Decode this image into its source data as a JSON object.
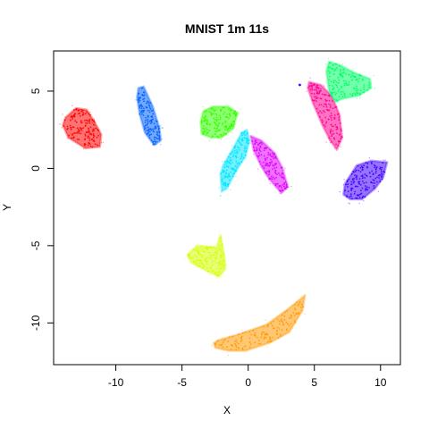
{
  "chart_data": {
    "type": "scatter",
    "title": "MNIST 1m 11s",
    "xlabel": "X",
    "ylabel": "Y",
    "xlim": [
      -14.7,
      11.5
    ],
    "ylim": [
      -12.7,
      7.6
    ],
    "xticks": [
      -10,
      -5,
      0,
      5,
      10
    ],
    "xtick_labels": [
      "-10",
      "-5",
      "0",
      "5",
      "10"
    ],
    "yticks": [
      -10,
      -5,
      0,
      5
    ],
    "ytick_labels": [
      "-10",
      "-5",
      "0",
      "5"
    ],
    "grid": false,
    "legend": "none",
    "clusters": [
      {
        "color": "#ff0000",
        "center": [
          -12.2,
          2.6
        ],
        "polygon": [
          [
            -13.8,
            3.3
          ],
          [
            -13.0,
            3.9
          ],
          [
            -12.2,
            3.8
          ],
          [
            -11.6,
            3.0
          ],
          [
            -11.1,
            2.2
          ],
          [
            -11.2,
            1.4
          ],
          [
            -12.3,
            1.3
          ],
          [
            -13.6,
            2.0
          ],
          [
            -14.0,
            2.8
          ]
        ]
      },
      {
        "color": "#0060ff",
        "center": [
          -7.3,
          3.5
        ],
        "polygon": [
          [
            -8.3,
            5.2
          ],
          [
            -7.9,
            5.3
          ],
          [
            -7.2,
            4.0
          ],
          [
            -6.7,
            2.6
          ],
          [
            -6.6,
            1.8
          ],
          [
            -7.1,
            1.5
          ],
          [
            -7.8,
            2.3
          ],
          [
            -8.2,
            3.5
          ],
          [
            -8.4,
            4.6
          ]
        ]
      },
      {
        "color": "#33ff00",
        "center": [
          -2.0,
          3.0
        ],
        "polygon": [
          [
            -3.4,
            3.7
          ],
          [
            -2.7,
            4.0
          ],
          [
            -1.5,
            4.0
          ],
          [
            -0.8,
            3.6
          ],
          [
            -1.1,
            2.6
          ],
          [
            -2.0,
            2.0
          ],
          [
            -2.8,
            2.0
          ],
          [
            -3.5,
            2.2
          ],
          [
            -3.6,
            3.0
          ]
        ]
      },
      {
        "color": "#00e5ff",
        "center": [
          -0.8,
          0.5
        ],
        "polygon": [
          [
            -0.1,
            2.5
          ],
          [
            0.1,
            1.8
          ],
          [
            -0.2,
            0.8
          ],
          [
            -1.0,
            -0.3
          ],
          [
            -1.6,
            -1.3
          ],
          [
            -2.0,
            -1.5
          ],
          [
            -2.1,
            -0.4
          ],
          [
            -1.9,
            0.2
          ],
          [
            -1.2,
            1.2
          ],
          [
            -0.5,
            2.3
          ]
        ]
      },
      {
        "color": "#e000ff",
        "center": [
          1.8,
          0.1
        ],
        "polygon": [
          [
            0.2,
            2.1
          ],
          [
            1.0,
            1.8
          ],
          [
            2.0,
            1.0
          ],
          [
            2.6,
            0.0
          ],
          [
            3.0,
            -1.2
          ],
          [
            2.5,
            -1.6
          ],
          [
            1.6,
            -0.7
          ],
          [
            1.0,
            0.1
          ],
          [
            0.4,
            1.2
          ]
        ]
      },
      {
        "color": "#ff0090",
        "center": [
          5.9,
          3.4
        ],
        "polygon": [
          [
            4.6,
            5.6
          ],
          [
            5.5,
            5.4
          ],
          [
            6.3,
            4.7
          ],
          [
            6.9,
            3.5
          ],
          [
            7.1,
            2.0
          ],
          [
            6.7,
            1.2
          ],
          [
            6.2,
            1.8
          ],
          [
            5.6,
            2.8
          ],
          [
            4.9,
            4.2
          ],
          [
            4.5,
            5.2
          ]
        ]
      },
      {
        "color": "#00ff66",
        "center": [
          7.5,
          5.6
        ],
        "polygon": [
          [
            6.1,
            6.9
          ],
          [
            6.9,
            6.7
          ],
          [
            8.0,
            6.2
          ],
          [
            9.2,
            5.8
          ],
          [
            9.3,
            5.2
          ],
          [
            8.3,
            4.7
          ],
          [
            7.1,
            4.5
          ],
          [
            6.6,
            4.3
          ],
          [
            6.1,
            5.0
          ],
          [
            5.9,
            6.3
          ]
        ]
      },
      {
        "color": "#4000ff",
        "center": [
          9.0,
          -0.8
        ],
        "polygon": [
          [
            7.3,
            -1.0
          ],
          [
            8.2,
            0.2
          ],
          [
            9.3,
            0.5
          ],
          [
            10.5,
            0.4
          ],
          [
            10.2,
            -0.6
          ],
          [
            9.6,
            -1.3
          ],
          [
            8.6,
            -2.0
          ],
          [
            7.7,
            -2.0
          ],
          [
            7.2,
            -1.7
          ]
        ]
      },
      {
        "color": "#d4ff00",
        "center": [
          -3.0,
          -5.8
        ],
        "polygon": [
          [
            -4.6,
            -5.6
          ],
          [
            -3.9,
            -5.0
          ],
          [
            -2.4,
            -5.1
          ],
          [
            -2.1,
            -4.3
          ],
          [
            -1.8,
            -5.6
          ],
          [
            -1.7,
            -6.5
          ],
          [
            -2.2,
            -7.0
          ],
          [
            -3.0,
            -6.7
          ],
          [
            -4.3,
            -6.1
          ]
        ]
      },
      {
        "color": "#ff9900",
        "center": [
          0.8,
          -11.0
        ],
        "polygon": [
          [
            -2.6,
            -11.3
          ],
          [
            -2.2,
            -11.1
          ],
          [
            -0.6,
            -10.7
          ],
          [
            1.4,
            -10.1
          ],
          [
            3.0,
            -9.1
          ],
          [
            4.3,
            -8.2
          ],
          [
            4.1,
            -9.2
          ],
          [
            3.1,
            -10.6
          ],
          [
            1.6,
            -11.3
          ],
          [
            -0.2,
            -11.8
          ],
          [
            -1.5,
            -11.8
          ],
          [
            -2.5,
            -11.6
          ]
        ]
      }
    ],
    "outliers": [
      {
        "color": "#4000ff",
        "x": 3.9,
        "y": 5.4
      }
    ]
  }
}
